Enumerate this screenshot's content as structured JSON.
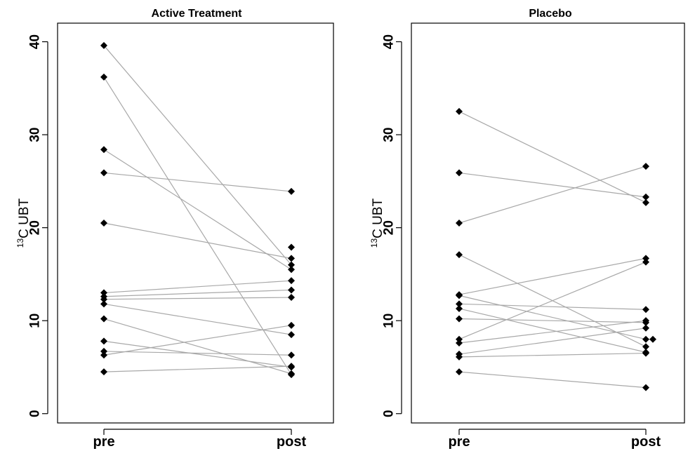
{
  "chart_data": [
    {
      "type": "line",
      "title": "Active Treatment",
      "ylabel_prefix": "13",
      "ylabel_main": "C UBT",
      "categories": [
        "pre",
        "post"
      ],
      "yticks": [
        0,
        10,
        20,
        30,
        40
      ],
      "ylim": [
        -1,
        42
      ],
      "pairs": [
        {
          "pre": 39.6,
          "post": 16.0
        },
        {
          "pre": 36.2,
          "post": 4.2
        },
        {
          "pre": 28.4,
          "post": 15.5
        },
        {
          "pre": 25.9,
          "post": 23.9
        },
        {
          "pre": 20.5,
          "post": 16.7
        },
        {
          "pre": 13.0,
          "post": 14.3
        },
        {
          "pre": 12.6,
          "post": 13.3
        },
        {
          "pre": 12.3,
          "post": 12.5
        },
        {
          "pre": 11.8,
          "post": 8.5
        },
        {
          "pre": 10.2,
          "post": 4.3
        },
        {
          "pre": 7.8,
          "post": 5.0
        },
        {
          "pre": 6.7,
          "post": 6.3
        },
        {
          "pre": 6.3,
          "post": 9.5
        },
        {
          "pre": 4.5,
          "post": 5.1
        }
      ],
      "extra_points": [
        {
          "category": "post",
          "value": 17.9
        }
      ]
    },
    {
      "type": "line",
      "title": "Placebo",
      "ylabel_prefix": "13",
      "ylabel_main": "C UBT",
      "categories": [
        "pre",
        "post"
      ],
      "yticks": [
        0,
        10,
        20,
        30,
        40
      ],
      "ylim": [
        -1,
        42
      ],
      "pairs": [
        {
          "pre": 32.5,
          "post": 22.7
        },
        {
          "pre": 25.9,
          "post": 23.3
        },
        {
          "pre": 20.5,
          "post": 26.6
        },
        {
          "pre": 17.1,
          "post": 7.2
        },
        {
          "pre": 12.8,
          "post": 16.7
        },
        {
          "pre": 12.7,
          "post": 8.0
        },
        {
          "pre": 11.8,
          "post": 11.2
        },
        {
          "pre": 11.3,
          "post": 6.6
        },
        {
          "pre": 10.2,
          "post": 9.8
        },
        {
          "pre": 8.0,
          "post": 16.3
        },
        {
          "pre": 7.6,
          "post": 10.0
        },
        {
          "pre": 6.4,
          "post": 9.2
        },
        {
          "pre": 6.1,
          "post": 6.5
        },
        {
          "pre": 4.5,
          "post": 2.8
        }
      ],
      "extra_points": [
        {
          "category": "post",
          "value": 8.0,
          "offset": 1
        }
      ]
    }
  ]
}
